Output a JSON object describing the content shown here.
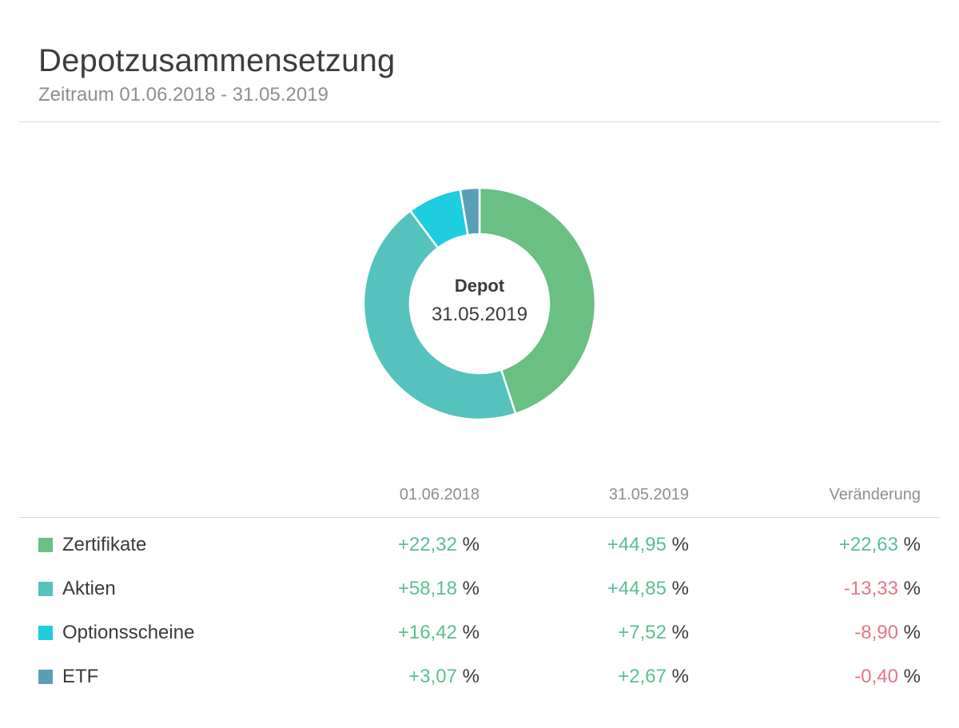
{
  "header": {
    "title": "Depotzusammensetzung",
    "subtitle": "Zeitraum 01.06.2018 - 31.05.2019"
  },
  "chart_center": {
    "title": "Depot",
    "date": "31.05.2019"
  },
  "table": {
    "headers": [
      "01.06.2018",
      "31.05.2019",
      "Veränderung"
    ],
    "unit": "%",
    "rows": [
      {
        "label": "Zertifikate",
        "color": "#6abf83",
        "v2018": "+22,32",
        "v2019": "+44,95",
        "change": "+22,63",
        "change_negative": false
      },
      {
        "label": "Aktien",
        "color": "#55c2bd",
        "v2018": "+58,18",
        "v2019": "+44,85",
        "change": "-13,33",
        "change_negative": true
      },
      {
        "label": "Optionsscheine",
        "color": "#1ecde0",
        "v2018": "+16,42",
        "v2019": "+7,52",
        "change": "-8,90",
        "change_negative": true
      },
      {
        "label": "ETF",
        "color": "#5a9fb8",
        "v2018": "+3,07",
        "v2019": "+2,67",
        "change": "-0,40",
        "change_negative": true
      }
    ]
  },
  "chart_data": {
    "type": "pie",
    "title": "",
    "categories": [
      "Zertifikate",
      "Aktien",
      "Optionsscheine",
      "ETF"
    ],
    "values": [
      44.95,
      44.85,
      7.52,
      2.67
    ],
    "colors": [
      "#6abf83",
      "#55c2bd",
      "#1ecde0",
      "#5a9fb8"
    ]
  }
}
